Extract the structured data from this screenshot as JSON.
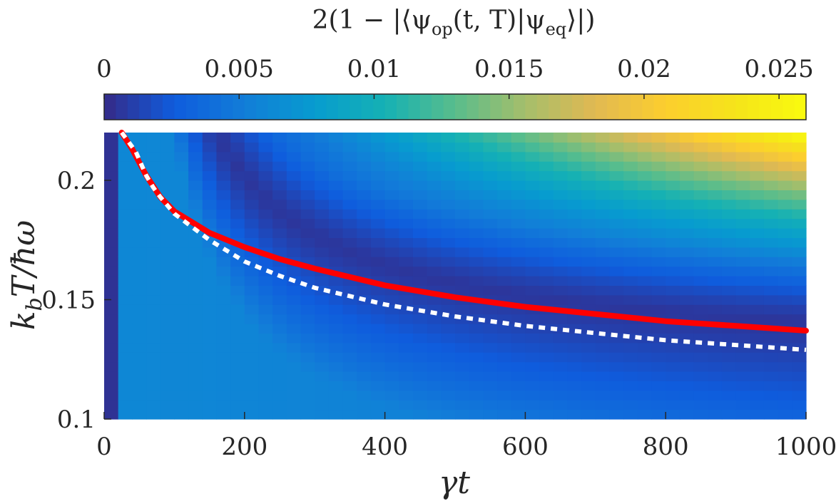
{
  "chart_data": {
    "type": "heatmap",
    "colorbar": {
      "title": "2(1 − |⟨ψ_op(t,T)|ψ_eq⟩|)",
      "title_parts": {
        "lead": "2(1 − |⟨ψ",
        "sub1": "op",
        "mid": "(t, T)|ψ",
        "sub2": "eq",
        "tail": "⟩|)"
      },
      "colormap": "parula",
      "range": [
        0,
        0.026
      ],
      "ticks": [
        0,
        0.005,
        0.01,
        0.015,
        0.02,
        0.025
      ],
      "tick_labels": [
        "0",
        "0.005",
        "0.01",
        "0.015",
        "0.02",
        "0.025"
      ],
      "location": "top"
    },
    "xlabel": "γt",
    "ylabel": "k_bT/ħω",
    "ylabel_parts": {
      "k": "k",
      "sub": "b",
      "rest": "T/ħω"
    },
    "xlim": [
      0,
      1000
    ],
    "ylim": [
      0.1,
      0.22
    ],
    "xticks": [
      0,
      200,
      400,
      600,
      800,
      1000
    ],
    "xtick_labels": [
      "0",
      "200",
      "400",
      "600",
      "800",
      "1000"
    ],
    "yticks": [
      0.1,
      0.15,
      0.2
    ],
    "ytick_labels": [
      "0.1",
      "0.15",
      "0.2"
    ],
    "grid": false,
    "series": [
      {
        "style": "solid",
        "color": "#ff0000",
        "x": [
          25,
          40,
          60,
          80,
          100,
          150,
          200,
          250,
          300,
          400,
          500,
          600,
          700,
          800,
          900,
          1000
        ],
        "y": [
          0.22,
          0.213,
          0.202,
          0.193,
          0.187,
          0.178,
          0.172,
          0.167,
          0.163,
          0.156,
          0.151,
          0.147,
          0.144,
          0.141,
          0.139,
          0.137
        ]
      },
      {
        "style": "dotted",
        "color": "#ffffff",
        "x": [
          25,
          45,
          60,
          70,
          80,
          100,
          150,
          200,
          250,
          300,
          400,
          500,
          600,
          700,
          800,
          900,
          1000
        ],
        "y": [
          0.22,
          0.212,
          0.202,
          0.197,
          0.193,
          0.186,
          0.175,
          0.166,
          0.16,
          0.155,
          0.148,
          0.143,
          0.139,
          0.136,
          0.133,
          0.131,
          0.129
        ]
      }
    ]
  }
}
